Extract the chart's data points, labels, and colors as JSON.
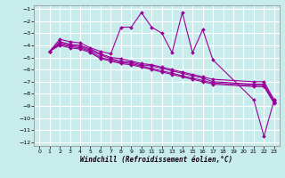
{
  "xlabel": "Windchill (Refroidissement éolien,°C)",
  "background_color": "#c8ecec",
  "grid_color": "#ffffff",
  "line_color": "#990099",
  "xlim_min": -0.5,
  "xlim_max": 23.5,
  "ylim_min": -12.3,
  "ylim_max": -0.7,
  "yticks": [
    -12,
    -11,
    -10,
    -9,
    -8,
    -7,
    -6,
    -5,
    -4,
    -3,
    -2,
    -1
  ],
  "xticks": [
    0,
    1,
    2,
    3,
    4,
    5,
    6,
    7,
    8,
    9,
    10,
    11,
    12,
    13,
    14,
    15,
    16,
    17,
    18,
    19,
    20,
    21,
    22,
    23
  ],
  "series": [
    {
      "x": [
        1,
        2,
        3,
        4,
        5,
        6,
        7,
        8,
        9,
        10,
        11,
        12,
        13,
        14,
        15,
        16,
        17,
        21,
        22,
        23
      ],
      "y": [
        -4.5,
        -3.5,
        -3.7,
        -3.8,
        -4.2,
        -4.5,
        -4.7,
        -2.5,
        -2.5,
        -1.3,
        -2.5,
        -3.0,
        -4.6,
        -1.3,
        -4.6,
        -2.7,
        -5.2,
        -8.5,
        -11.5,
        -8.5
      ]
    },
    {
      "x": [
        1,
        2,
        3,
        4,
        5,
        6,
        7,
        8,
        9,
        10,
        11,
        12,
        13,
        14,
        15,
        16,
        17,
        21,
        22,
        23
      ],
      "y": [
        -4.5,
        -3.7,
        -3.9,
        -4.0,
        -4.3,
        -4.7,
        -5.0,
        -5.1,
        -5.3,
        -5.5,
        -5.6,
        -5.8,
        -6.0,
        -6.2,
        -6.4,
        -6.6,
        -6.8,
        -7.0,
        -7.0,
        -8.5
      ]
    },
    {
      "x": [
        1,
        2,
        3,
        4,
        5,
        6,
        7,
        8,
        9,
        10,
        11,
        12,
        13,
        14,
        15,
        16,
        17,
        21,
        22,
        23
      ],
      "y": [
        -4.5,
        -3.8,
        -4.0,
        -4.1,
        -4.4,
        -4.8,
        -5.1,
        -5.3,
        -5.4,
        -5.6,
        -5.7,
        -5.9,
        -6.1,
        -6.3,
        -6.5,
        -6.7,
        -7.0,
        -7.2,
        -7.2,
        -8.6
      ]
    },
    {
      "x": [
        1,
        2,
        3,
        4,
        5,
        6,
        7,
        8,
        9,
        10,
        11,
        12,
        13,
        14,
        15,
        16,
        17,
        21,
        22,
        23
      ],
      "y": [
        -4.5,
        -3.9,
        -4.1,
        -4.2,
        -4.5,
        -5.0,
        -5.2,
        -5.4,
        -5.5,
        -5.7,
        -5.9,
        -6.1,
        -6.3,
        -6.5,
        -6.7,
        -6.9,
        -7.1,
        -7.3,
        -7.3,
        -8.7
      ]
    },
    {
      "x": [
        1,
        2,
        3,
        4,
        5,
        6,
        7,
        8,
        9,
        10,
        11,
        12,
        13,
        14,
        15,
        16,
        17,
        21,
        22,
        23
      ],
      "y": [
        -4.5,
        -4.0,
        -4.2,
        -4.3,
        -4.6,
        -5.1,
        -5.3,
        -5.5,
        -5.6,
        -5.8,
        -6.0,
        -6.2,
        -6.4,
        -6.6,
        -6.8,
        -7.0,
        -7.2,
        -7.4,
        -7.4,
        -8.8
      ]
    }
  ]
}
